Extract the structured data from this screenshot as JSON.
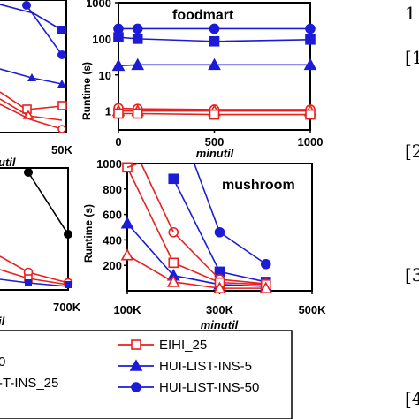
{
  "colors": {
    "red": "#e8201e",
    "blue": "#1c1cd6",
    "black": "#000000"
  },
  "left_top_xticks": [
    "50K"
  ],
  "left_top_xlabel_fragment": "util",
  "left_bottom_xticks": [
    "700K"
  ],
  "left_bottom_xlabel_fragment": "il",
  "right_margin_text": [
    "1",
    "[1",
    "[2",
    "[3",
    "[4"
  ],
  "chart_data": [
    {
      "type": "line",
      "title": "foodmart",
      "xlabel": "minutil",
      "ylabel": "Runtime (s)",
      "yscale": "log",
      "x": [
        0,
        100,
        500,
        1000
      ],
      "xticks": [
        "0",
        "500",
        "1000"
      ],
      "ylim": [
        0.3,
        1000
      ],
      "yticks": [
        "1",
        "10",
        "100",
        "1000"
      ],
      "series": [
        {
          "name": "HUI-LIST-INS-50",
          "color": "blue",
          "marker": "circle",
          "values": [
            190,
            190,
            190,
            190
          ]
        },
        {
          "name": "",
          "color": "blue",
          "marker": "square",
          "values": [
            110,
            100,
            85,
            95
          ]
        },
        {
          "name": "HUI-LIST-INS-5",
          "color": "blue",
          "marker": "triangle",
          "values": [
            18,
            19,
            19,
            19
          ]
        },
        {
          "name": "",
          "color": "red",
          "marker": "circle",
          "values": [
            1.2,
            1.15,
            1.1,
            1.1
          ]
        },
        {
          "name": "",
          "color": "red",
          "marker": "triangle",
          "values": [
            1.0,
            1.0,
            1.0,
            1.0
          ]
        },
        {
          "name": "EIHI_25",
          "color": "red",
          "marker": "square",
          "values": [
            0.85,
            0.85,
            0.8,
            0.8
          ]
        }
      ]
    },
    {
      "type": "line",
      "title": "mushroom",
      "xlabel": "minutil",
      "ylabel": "Runtime (s)",
      "x": [
        100000,
        200000,
        300000,
        400000
      ],
      "xlim": [
        100000,
        500000
      ],
      "xticks": [
        "100K",
        "300K",
        "500K"
      ],
      "ylim": [
        0,
        1000
      ],
      "yticks": [
        "200",
        "400",
        "600",
        "800",
        "1000"
      ],
      "series": [
        {
          "name": "HUI-LIST-INS-50",
          "color": "blue",
          "marker": "circle",
          "values": [
            null,
            null,
            460,
            210
          ]
        },
        {
          "name": "",
          "color": "blue",
          "marker": "square",
          "values": [
            null,
            880,
            150,
            70
          ]
        },
        {
          "name": "HUI-LIST-INS-5",
          "color": "blue",
          "marker": "triangle",
          "values": [
            530,
            120,
            50,
            35
          ]
        },
        {
          "name": "",
          "color": "red",
          "marker": "circle",
          "values": [
            null,
            460,
            90,
            55
          ]
        },
        {
          "name": "EIHI_25",
          "color": "red",
          "marker": "square",
          "values": [
            970,
            220,
            65,
            50
          ]
        },
        {
          "name": "",
          "color": "red",
          "marker": "triangle",
          "values": [
            280,
            70,
            20,
            20
          ]
        }
      ]
    }
  ],
  "legend": [
    {
      "label": "EIHI_25",
      "color": "red",
      "marker": "square-open"
    },
    {
      "label": "HUI-LIST-INS-5",
      "color": "blue",
      "marker": "triangle"
    },
    {
      "label": "HUI-LIST-INS-50",
      "color": "blue",
      "marker": "circle"
    }
  ],
  "legend_left_fragments": [
    "0",
    "-T-INS_25"
  ]
}
